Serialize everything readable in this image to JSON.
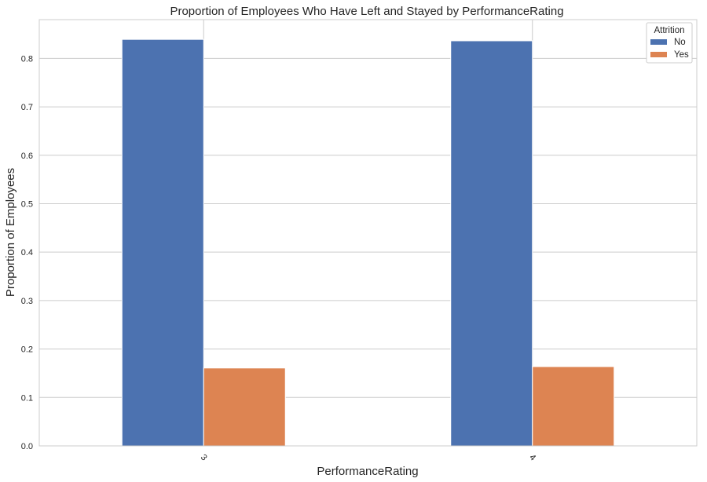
{
  "chart_data": {
    "type": "bar",
    "title": "Proportion of Employees Who Have Left and Stayed by PerformanceRating",
    "xlabel": "PerformanceRating",
    "ylabel": "Proportion of Employees",
    "categories": [
      "3",
      "4"
    ],
    "series": [
      {
        "name": "No",
        "values": [
          0.8392,
          0.8363
        ],
        "color": "#4c72b0"
      },
      {
        "name": "Yes",
        "values": [
          0.1608,
          0.1637
        ],
        "color": "#dd8452"
      }
    ],
    "ylim": [
      0,
      0.88
    ],
    "yticks": [
      "0.0",
      "0.1",
      "0.2",
      "0.3",
      "0.4",
      "0.5",
      "0.6",
      "0.7",
      "0.8"
    ],
    "legend": {
      "title": "Attrition",
      "position": "top-right"
    },
    "grid": true
  }
}
